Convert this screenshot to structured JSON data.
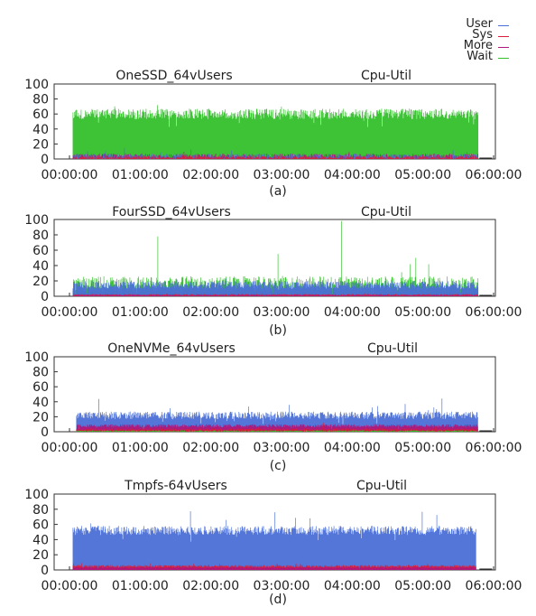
{
  "legend": [
    {
      "label": "User",
      "color": "#4a6fd6"
    },
    {
      "label": "Sys",
      "color": "#d81e3c"
    },
    {
      "label": "More",
      "color": "#b0177a"
    },
    {
      "label": "Wait",
      "color": "#33c02a"
    }
  ],
  "chart_data": [
    {
      "type": "line",
      "title": "OneSSD_64vUsers",
      "subtitle": "Cpu-Util",
      "caption": "(a)",
      "x_ticks": [
        "00:00:00",
        "01:00:00",
        "02:00:00",
        "03:00:00",
        "04:00:00",
        "05:00:00",
        "06:00:00"
      ],
      "y_ticks": [
        "0",
        "20",
        "40",
        "60",
        "80",
        "100"
      ],
      "ylim": [
        0,
        100
      ],
      "xlim_hours": [
        0,
        6
      ],
      "series": [
        {
          "name": "User",
          "color": "#4a6fd6",
          "start_h": 0.05,
          "end_h": 5.78,
          "mean": 3,
          "spread": 4,
          "spike_max": 15
        },
        {
          "name": "Sys",
          "color": "#d81e3c",
          "start_h": 0.05,
          "end_h": 5.78,
          "mean": 2,
          "spread": 2,
          "spike_max": 8
        },
        {
          "name": "More",
          "color": "#b0177a",
          "start_h": 0.05,
          "end_h": 5.78,
          "mean": 4,
          "spread": 3,
          "spike_max": 10
        },
        {
          "name": "Wait",
          "color": "#33c02a",
          "start_h": 0.05,
          "end_h": 5.78,
          "mean": 60,
          "spread": 7,
          "spike_max": 72
        }
      ]
    },
    {
      "type": "line",
      "title": "FourSSD_64vUsers",
      "subtitle": "Cpu-Util",
      "caption": "(b)",
      "x_ticks": [
        "00:00:00",
        "01:00:00",
        "02:00:00",
        "03:00:00",
        "04:00:00",
        "05:00:00",
        "06:00:00"
      ],
      "y_ticks": [
        "0",
        "20",
        "40",
        "60",
        "80",
        "100"
      ],
      "ylim": [
        0,
        100
      ],
      "xlim_hours": [
        0,
        6
      ],
      "series": [
        {
          "name": "User",
          "color": "#4a6fd6",
          "start_h": 0.05,
          "end_h": 5.78,
          "mean": 15,
          "spread": 5,
          "spike_max": 25
        },
        {
          "name": "Sys",
          "color": "#d81e3c",
          "start_h": 0.05,
          "end_h": 5.78,
          "mean": 2,
          "spread": 1,
          "spike_max": 4
        },
        {
          "name": "More",
          "color": "#b0177a",
          "start_h": 0.05,
          "end_h": 5.78,
          "mean": 1,
          "spread": 1,
          "spike_max": 3
        },
        {
          "name": "Wait",
          "color": "#33c02a",
          "start_h": 0.05,
          "end_h": 5.78,
          "mean": 16,
          "spread": 10,
          "spike_max": 45,
          "peaks": [
            [
              1.25,
              78
            ],
            [
              3.85,
              98
            ],
            [
              2.95,
              55
            ],
            [
              4.9,
              50
            ]
          ]
        }
      ]
    },
    {
      "type": "line",
      "title": "OneNVMe_64vUsers",
      "subtitle": "Cpu-Util",
      "caption": "(c)",
      "x_ticks": [
        "00:00:00",
        "01:00:00",
        "02:00:00",
        "03:00:00",
        "04:00:00",
        "05:00:00",
        "06:00:00"
      ],
      "y_ticks": [
        "0",
        "20",
        "40",
        "60",
        "80",
        "100"
      ],
      "ylim": [
        0,
        100
      ],
      "xlim_hours": [
        0,
        6
      ],
      "series": [
        {
          "name": "User",
          "color": "#4a6fd6",
          "start_h": 0.1,
          "end_h": 5.78,
          "mean": 22,
          "spread": 5,
          "spike_max": 45
        },
        {
          "name": "Sys",
          "color": "#d81e3c",
          "start_h": 0.1,
          "end_h": 5.78,
          "mean": 3,
          "spread": 1.5,
          "spike_max": 14
        },
        {
          "name": "More",
          "color": "#b0177a",
          "start_h": 0.1,
          "end_h": 5.78,
          "mean": 8,
          "spread": 2,
          "spike_max": 12
        },
        {
          "name": "Wait",
          "color": "#33c02a",
          "start_h": 0.1,
          "end_h": 5.78,
          "mean": 1,
          "spread": 1,
          "spike_max": 2
        }
      ]
    },
    {
      "type": "line",
      "title": "Tmpfs-64vUsers",
      "subtitle": "Cpu-Util",
      "caption": "(d)",
      "x_ticks": [
        "00:00:00",
        "01:00:00",
        "02:00:00",
        "03:00:00",
        "04:00:00",
        "05:00:00",
        "06:00:00"
      ],
      "y_ticks": [
        "0",
        "20",
        "40",
        "60",
        "80",
        "100"
      ],
      "ylim": [
        0,
        100
      ],
      "xlim_hours": [
        0,
        6
      ],
      "series": [
        {
          "name": "User",
          "color": "#4a6fd6",
          "start_h": 0.05,
          "end_h": 5.75,
          "mean": 52,
          "spread": 6,
          "spike_max": 85
        },
        {
          "name": "Sys",
          "color": "#d81e3c",
          "start_h": 0.05,
          "end_h": 5.75,
          "mean": 5,
          "spread": 1.5,
          "spike_max": 9
        },
        {
          "name": "More",
          "color": "#b0177a",
          "start_h": 0.05,
          "end_h": 5.75,
          "mean": 3,
          "spread": 1,
          "spike_max": 6
        },
        {
          "name": "Wait",
          "color": "#33c02a",
          "start_h": 0.05,
          "end_h": 5.75,
          "mean": 0,
          "spread": 0,
          "spike_max": 0
        }
      ]
    }
  ]
}
